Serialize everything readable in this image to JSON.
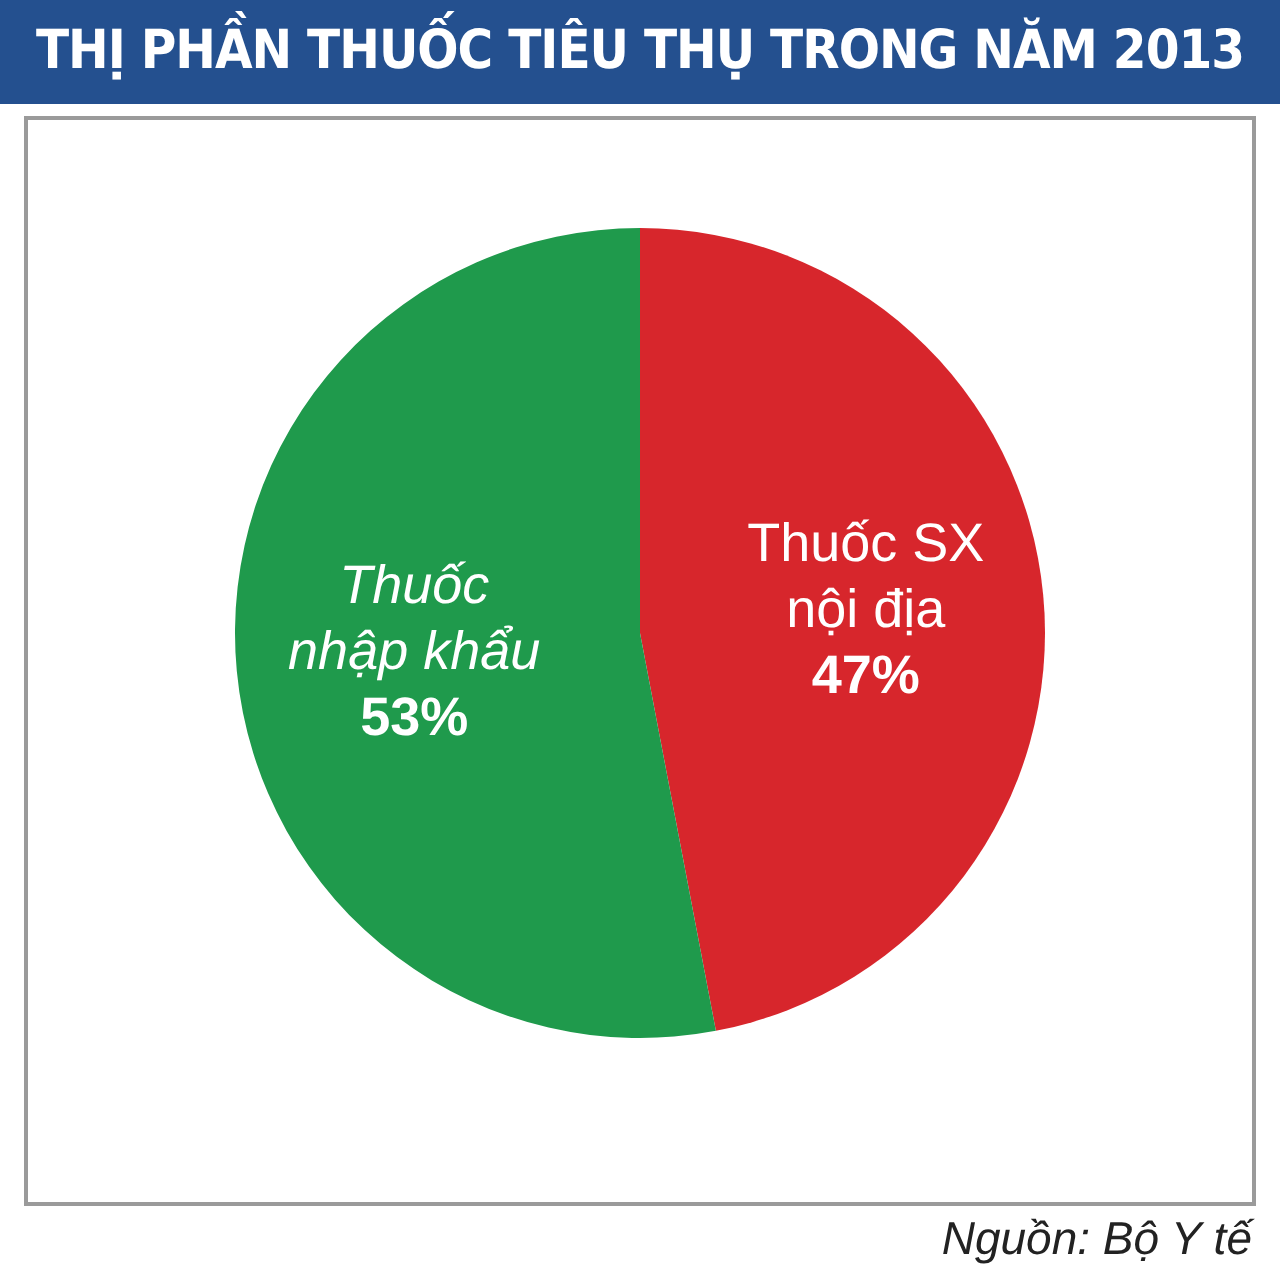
{
  "chart_data": {
    "type": "pie",
    "title": "THỊ PHẦN THUỐC TIÊU THỤ TRONG NĂM 2013",
    "categories": [
      "Thuốc SX nội địa",
      "Thuốc nhập khẩu"
    ],
    "values": [
      47,
      53
    ],
    "colors": [
      "#d7262c",
      "#1f9a4c"
    ],
    "value_labels": [
      "47%",
      "53%"
    ],
    "annotations": [
      "Nguồn: Bộ Y tế"
    ]
  }
}
